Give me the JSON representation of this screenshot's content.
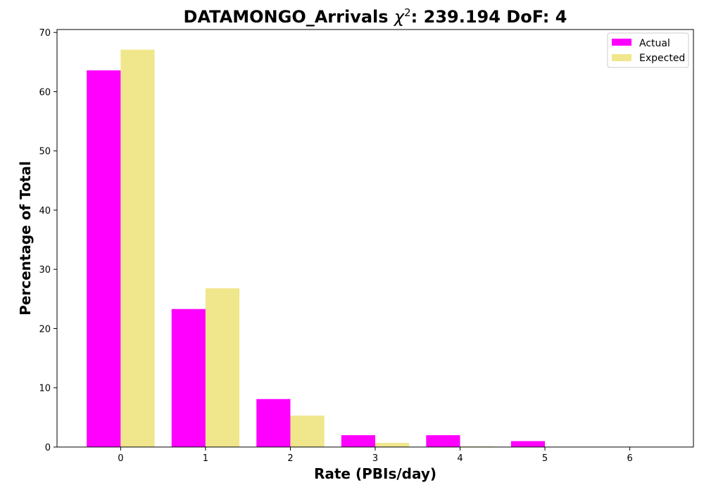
{
  "chart_data": {
    "type": "bar",
    "title_main": "DATAMONGO_Arrivals ",
    "title_chi": "χ",
    "title_sup": "2",
    "title_rest": ": 239.194 DoF: 4",
    "xlabel": "Rate (PBIs/day)",
    "ylabel": "Percentage of Total",
    "categories": [
      "0",
      "1",
      "2",
      "3",
      "4",
      "5",
      "6"
    ],
    "x": [
      0,
      1,
      2,
      3,
      4,
      5,
      6
    ],
    "xlim": [
      -0.75,
      6.75
    ],
    "ylim": [
      0,
      70.5
    ],
    "yticks": [
      0,
      10,
      20,
      30,
      40,
      50,
      60,
      70
    ],
    "legend_position": "top-right",
    "grid": false,
    "series": [
      {
        "name": "Actual",
        "color": "#ff00ff",
        "values": [
          63.6,
          23.3,
          8.1,
          2.0,
          2.0,
          1.0,
          0.0
        ]
      },
      {
        "name": "Expected",
        "color": "#f0e68c",
        "values": [
          67.1,
          26.8,
          5.3,
          0.7,
          0.1,
          0.0,
          0.0
        ]
      }
    ]
  }
}
